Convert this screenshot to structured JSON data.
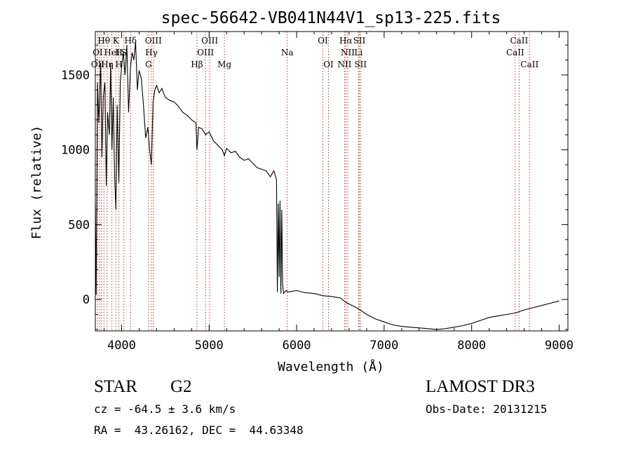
{
  "chart_data": {
    "type": "line",
    "title": "spec-56642-VB041N44V1_sp13-225.fits",
    "xlabel": "Wavelength (Å)",
    "ylabel": "Flux (relative)",
    "xlim": [
      3700,
      9100
    ],
    "ylim": [
      -210,
      1790
    ],
    "xticks": [
      4000,
      5000,
      6000,
      7000,
      8000,
      9000
    ],
    "yticks": [
      0,
      500,
      1000,
      1500
    ],
    "line_color": "#000000",
    "marker_color": "#b03a2e",
    "series": [
      {
        "name": "flux",
        "x": [
          3700,
          3710,
          3725,
          3740,
          3760,
          3775,
          3790,
          3810,
          3825,
          3840,
          3860,
          3875,
          3890,
          3905,
          3920,
          3935,
          3950,
          3968,
          3985,
          4000,
          4020,
          4040,
          4060,
          4080,
          4101,
          4120,
          4140,
          4160,
          4180,
          4200,
          4225,
          4250,
          4275,
          4300,
          4320,
          4340,
          4360,
          4380,
          4400,
          4430,
          4460,
          4500,
          4550,
          4600,
          4650,
          4700,
          4750,
          4800,
          4850,
          4861,
          4880,
          4920,
          4960,
          5000,
          5050,
          5100,
          5150,
          5175,
          5200,
          5250,
          5300,
          5350,
          5400,
          5450,
          5500,
          5550,
          5600,
          5650,
          5700,
          5740,
          5770,
          5780,
          5790,
          5800,
          5810,
          5820,
          5830,
          5840,
          5850,
          5880,
          5900,
          6000,
          6100,
          6200,
          6300,
          6400,
          6500,
          6563,
          6600,
          6650,
          6700,
          6750,
          6800,
          6900,
          7000,
          7100,
          7200,
          7300,
          7400,
          7500,
          7600,
          7700,
          7800,
          7900,
          8000,
          8100,
          8200,
          8300,
          8400,
          8500,
          8600,
          8700,
          8800,
          8900,
          9000
        ],
        "y": [
          640,
          30,
          1450,
          1180,
          1580,
          950,
          1350,
          1450,
          760,
          1250,
          1100,
          1580,
          1000,
          1350,
          820,
          600,
          1300,
          780,
          1450,
          1550,
          1650,
          1500,
          1700,
          1250,
          1550,
          1650,
          1600,
          1720,
          1400,
          1530,
          1480,
          1300,
          1080,
          1150,
          1000,
          900,
          1320,
          1400,
          1430,
          1380,
          1410,
          1350,
          1330,
          1320,
          1290,
          1250,
          1230,
          1200,
          1180,
          1000,
          1150,
          1140,
          1100,
          1120,
          1060,
          1030,
          1000,
          960,
          1010,
          980,
          990,
          950,
          930,
          940,
          910,
          880,
          870,
          860,
          820,
          860,
          800,
          50,
          640,
          150,
          660,
          40,
          600,
          100,
          40,
          60,
          50,
          60,
          45,
          40,
          25,
          20,
          10,
          -20,
          -30,
          -45,
          -60,
          -80,
          -100,
          -130,
          -150,
          -170,
          -180,
          -185,
          -190,
          -195,
          -200,
          -195,
          -185,
          -175,
          -160,
          -140,
          -120,
          -110,
          -100,
          -90,
          -70,
          -55,
          -40,
          -25,
          -10
        ]
      }
    ],
    "marker_lines": [
      {
        "w": 3727
      },
      {
        "w": 3750
      },
      {
        "w": 3771
      },
      {
        "w": 3798
      },
      {
        "w": 3835
      },
      {
        "w": 3889
      },
      {
        "w": 3934
      },
      {
        "w": 3969
      },
      {
        "w": 4026
      },
      {
        "w": 4102
      },
      {
        "w": 4308
      },
      {
        "w": 4341
      },
      {
        "w": 4363
      },
      {
        "w": 4861
      },
      {
        "w": 4959
      },
      {
        "w": 5007
      },
      {
        "w": 5175
      },
      {
        "w": 5893
      },
      {
        "w": 6300
      },
      {
        "w": 6364
      },
      {
        "w": 6548
      },
      {
        "w": 6563
      },
      {
        "w": 6584
      },
      {
        "w": 6707
      },
      {
        "w": 6717
      },
      {
        "w": 6731
      },
      {
        "w": 8498
      },
      {
        "w": 8542
      },
      {
        "w": 8662
      }
    ],
    "line_labels": [
      {
        "text": "Hθ",
        "w": 3797,
        "row": 1
      },
      {
        "text": "K",
        "w": 3934,
        "row": 1
      },
      {
        "text": "Hδ",
        "w": 4102,
        "row": 1
      },
      {
        "text": "OIII",
        "w": 4363,
        "row": 1
      },
      {
        "text": "OIII",
        "w": 5007,
        "row": 1
      },
      {
        "text": "OI",
        "w": 6300,
        "row": 1
      },
      {
        "text": "Hα",
        "w": 6563,
        "row": 1
      },
      {
        "text": "SII",
        "w": 6717,
        "row": 1
      },
      {
        "text": "CaII",
        "w": 8542,
        "row": 1
      },
      {
        "text": "OI",
        "w": 3727,
        "row": 2
      },
      {
        "text": "HeI",
        "w": 3889,
        "row": 2
      },
      {
        "text": "S",
        "w": 4026,
        "row": 2
      },
      {
        "text": "H",
        "w": 3969,
        "row": 2
      },
      {
        "text": "Hγ",
        "w": 4341,
        "row": 2
      },
      {
        "text": "OIII",
        "w": 4959,
        "row": 2
      },
      {
        "text": "Na",
        "w": 5893,
        "row": 2
      },
      {
        "text": "NII",
        "w": 6584,
        "row": 2
      },
      {
        "text": "Li",
        "w": 6707,
        "row": 2
      },
      {
        "text": "CaII",
        "w": 8498,
        "row": 2
      },
      {
        "text": "OII",
        "w": 3727,
        "row": 3
      },
      {
        "text": "Hη",
        "w": 3835,
        "row": 3
      },
      {
        "text": "H",
        "w": 3969,
        "row": 3
      },
      {
        "text": "G",
        "w": 4308,
        "row": 3
      },
      {
        "text": "Hβ",
        "w": 4861,
        "row": 3
      },
      {
        "text": "Mg",
        "w": 5175,
        "row": 3
      },
      {
        "text": "OI",
        "w": 6364,
        "row": 3
      },
      {
        "text": "NII",
        "w": 6548,
        "row": 3
      },
      {
        "text": "SII",
        "w": 6731,
        "row": 3
      },
      {
        "text": "CaII",
        "w": 8662,
        "row": 3
      }
    ]
  },
  "info": {
    "object_class": "STAR",
    "subclass": "G2",
    "survey": "LAMOST DR3",
    "cz": "cz = -64.5 ± 3.6 km/s",
    "obs_date": "Obs-Date: 20131215",
    "coords": "RA =  43.26162, DEC =  44.63348"
  }
}
